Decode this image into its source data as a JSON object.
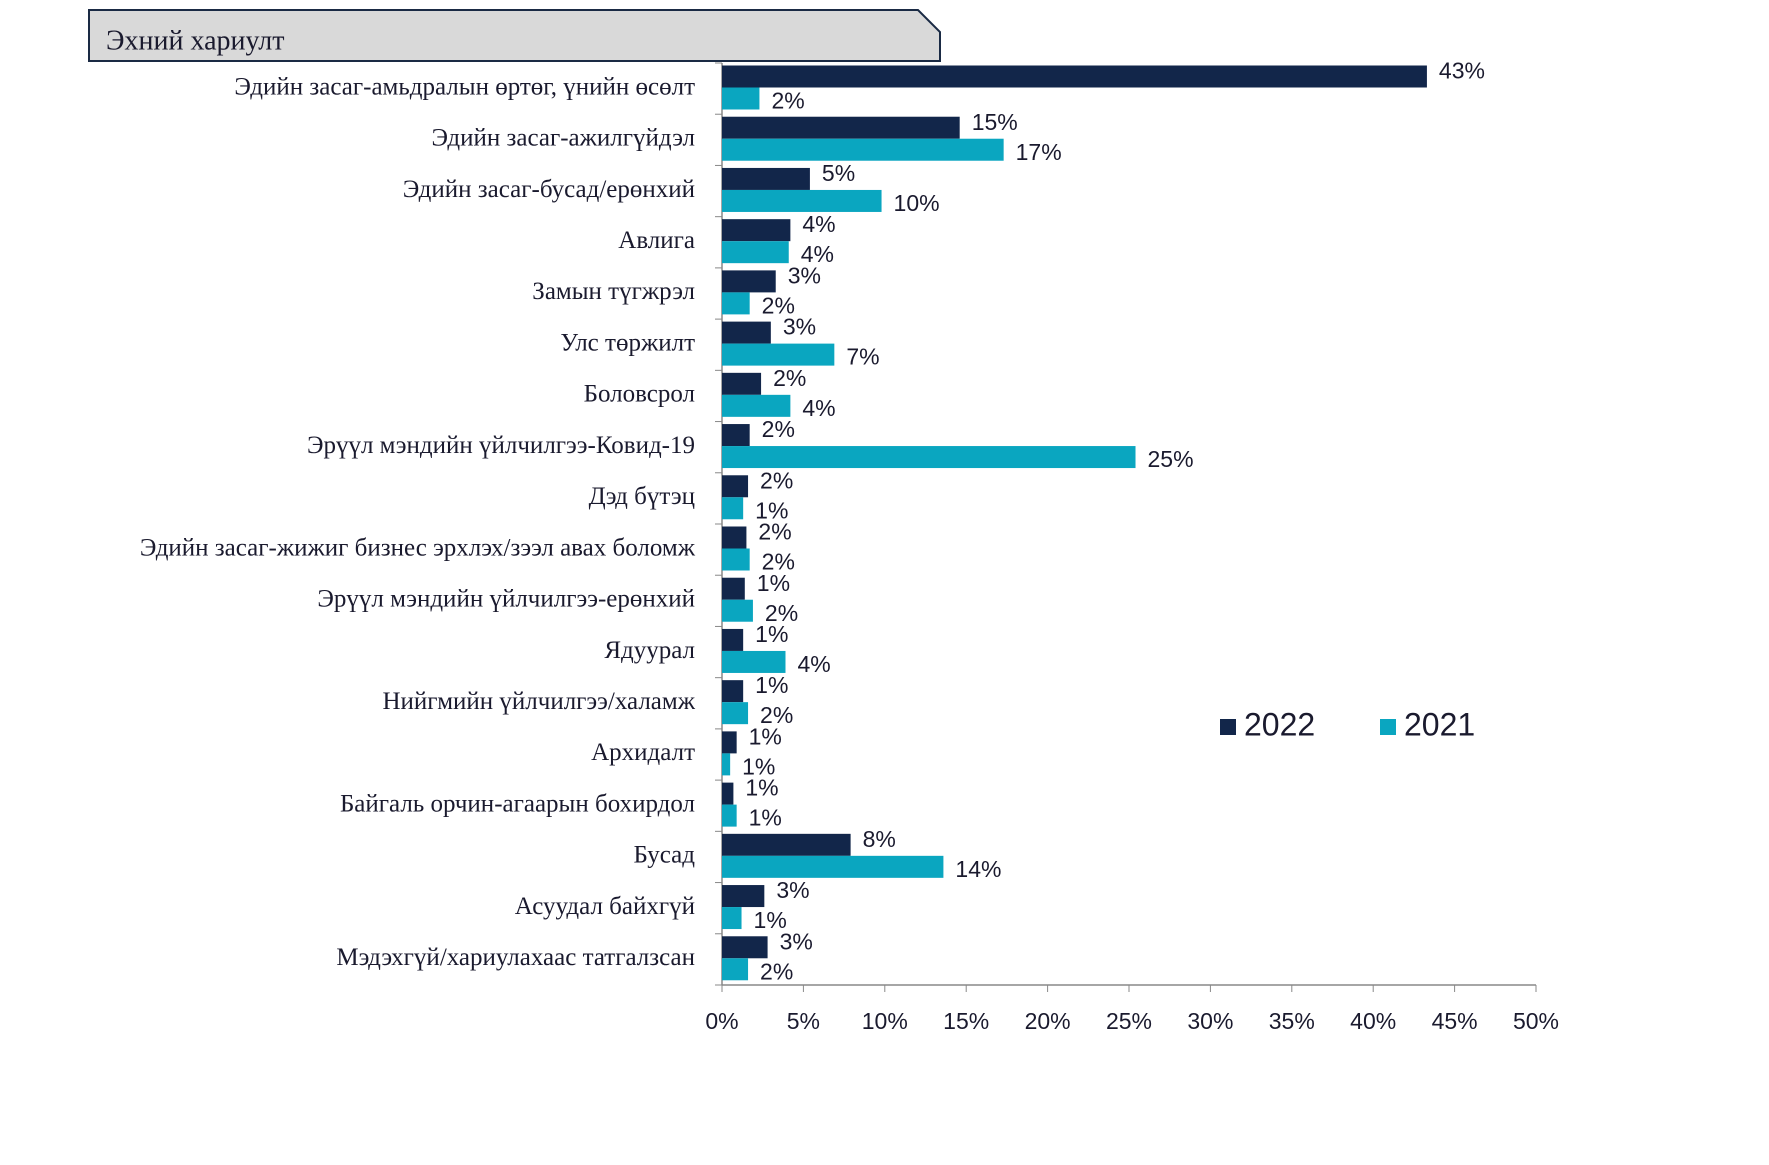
{
  "chart_data": {
    "type": "barh",
    "title": "Эхний хариулт",
    "categories": [
      "Эдийн засаг-амьдралын өртөг, үнийн өсөлт",
      "Эдийн засаг-ажилгүйдэл",
      "Эдийн засаг-бусад/ерөнхий",
      "Авлига",
      "Замын түгжрэл",
      "Улс төржилт",
      "Боловсрол",
      "Эрүүл мэндийн үйлчилгээ-Ковид-19",
      "Дэд бүтэц",
      "Эдийн засаг-жижиг бизнес эрхлэх/зээл авах боломж",
      "Эрүүл мэндийн үйлчилгээ-ерөнхий",
      "Ядуурал",
      "Нийгмийн үйлчилгээ/халамж",
      "Архидалт",
      "Байгаль орчин-агаарын бохирдол",
      "Бусад",
      "Асуудал байхгүй",
      "Мэдэхгүй/хариулахаас татгалзсан"
    ],
    "series": [
      {
        "name": "2022",
        "color": "#12264a",
        "values": [
          43.3,
          14.6,
          5.4,
          4.2,
          3.3,
          3.0,
          2.4,
          1.7,
          1.6,
          1.5,
          1.4,
          1.3,
          1.3,
          0.9,
          0.7,
          7.9,
          2.6,
          2.8
        ],
        "value_labels": [
          "43%",
          "15%",
          "5%",
          "4%",
          "3%",
          "3%",
          "2%",
          "2%",
          "2%",
          "2%",
          "1%",
          "1%",
          "1%",
          "1%",
          "1%",
          "8%",
          "3%",
          "3%"
        ]
      },
      {
        "name": "2021",
        "color": "#0aa6c0",
        "values": [
          2.3,
          17.3,
          9.8,
          4.1,
          1.7,
          6.9,
          4.2,
          25.4,
          1.3,
          1.7,
          1.9,
          3.9,
          1.6,
          0.5,
          0.9,
          13.6,
          1.2,
          1.6
        ],
        "value_labels": [
          "2%",
          "17%",
          "10%",
          "4%",
          "2%",
          "7%",
          "4%",
          "25%",
          "1%",
          "2%",
          "2%",
          "4%",
          "2%",
          "1%",
          "1%",
          "14%",
          "1%",
          "2%"
        ]
      }
    ],
    "xlim": [
      0,
      50
    ],
    "xticks": [
      {
        "value": 0,
        "label": "0%"
      },
      {
        "value": 5,
        "label": "5%"
      },
      {
        "value": 10,
        "label": "10%"
      },
      {
        "value": 15,
        "label": "15%"
      },
      {
        "value": 20,
        "label": "20%"
      },
      {
        "value": 25,
        "label": "25%"
      },
      {
        "value": 30,
        "label": "30%"
      },
      {
        "value": 35,
        "label": "35%"
      },
      {
        "value": 40,
        "label": "40%"
      },
      {
        "value": 45,
        "label": "45%"
      },
      {
        "value": 50,
        "label": "50%"
      }
    ],
    "legend": "right"
  }
}
